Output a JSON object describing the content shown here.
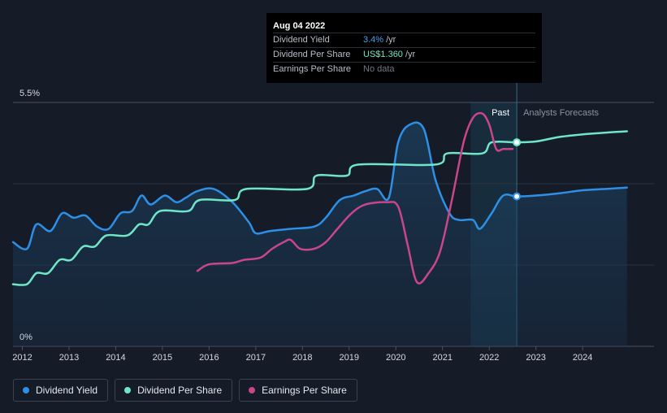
{
  "tooltip": {
    "date": "Aug 04 2022",
    "rows": [
      {
        "label": "Dividend Yield",
        "value": "3.4%",
        "unit": "/yr"
      },
      {
        "label": "Dividend Per Share",
        "value": "US$1.360",
        "unit": "/yr"
      },
      {
        "label": "Earnings Per Share",
        "value": "No data",
        "unit": ""
      }
    ]
  },
  "legend": [
    {
      "label": "Dividend Yield",
      "color": "#2d8fe6"
    },
    {
      "label": "Dividend Per Share",
      "color": "#6fe6c8"
    },
    {
      "label": "Earnings Per Share",
      "color": "#c9468a"
    }
  ],
  "chart_data": {
    "type": "line",
    "title": "",
    "y_axis_labels": [
      "5.5%",
      "0%"
    ],
    "ylim": [
      0,
      5.5
    ],
    "xlim": [
      2011.8,
      2024.95
    ],
    "x_ticks": [
      "2012",
      "2013",
      "2014",
      "2015",
      "2016",
      "2017",
      "2018",
      "2019",
      "2020",
      "2021",
      "2022",
      "2023",
      "2024"
    ],
    "regions": {
      "past_label": "Past",
      "forecast_label": "Analysts Forecasts",
      "highlight_start": 2021.6,
      "today": 2022.59
    },
    "series": [
      {
        "name": "Dividend Yield",
        "key": "dividend_yield",
        "color": "#2d8fe6",
        "area": true,
        "points": [
          [
            2011.8,
            2.35
          ],
          [
            2012.1,
            2.2
          ],
          [
            2012.3,
            2.75
          ],
          [
            2012.6,
            2.6
          ],
          [
            2012.85,
            3.0
          ],
          [
            2013.1,
            2.9
          ],
          [
            2013.35,
            2.95
          ],
          [
            2013.6,
            2.7
          ],
          [
            2013.85,
            2.65
          ],
          [
            2014.1,
            3.0
          ],
          [
            2014.35,
            3.05
          ],
          [
            2014.55,
            3.4
          ],
          [
            2014.75,
            3.2
          ],
          [
            2015.05,
            3.4
          ],
          [
            2015.3,
            3.25
          ],
          [
            2015.5,
            3.35
          ],
          [
            2015.75,
            3.5
          ],
          [
            2016.1,
            3.55
          ],
          [
            2016.5,
            3.25
          ],
          [
            2016.85,
            2.8
          ],
          [
            2017.0,
            2.55
          ],
          [
            2017.3,
            2.6
          ],
          [
            2017.75,
            2.65
          ],
          [
            2018.25,
            2.7
          ],
          [
            2018.5,
            2.9
          ],
          [
            2018.8,
            3.3
          ],
          [
            2019.1,
            3.4
          ],
          [
            2019.35,
            3.5
          ],
          [
            2019.6,
            3.55
          ],
          [
            2019.85,
            3.35
          ],
          [
            2020.05,
            4.6
          ],
          [
            2020.3,
            5.0
          ],
          [
            2020.6,
            4.9
          ],
          [
            2020.85,
            3.75
          ],
          [
            2021.15,
            3.0
          ],
          [
            2021.35,
            2.85
          ],
          [
            2021.65,
            2.85
          ],
          [
            2021.8,
            2.65
          ],
          [
            2022.05,
            3.0
          ],
          [
            2022.3,
            3.4
          ],
          [
            2022.59,
            3.38
          ],
          [
            2023.0,
            3.4
          ],
          [
            2023.5,
            3.45
          ],
          [
            2024.0,
            3.52
          ],
          [
            2024.5,
            3.55
          ],
          [
            2024.95,
            3.58
          ]
        ]
      },
      {
        "name": "Dividend Per Share",
        "key": "dividend_per_share",
        "color": "#6fe6c8",
        "area": false,
        "points": [
          [
            2011.8,
            1.4
          ],
          [
            2012.1,
            1.4
          ],
          [
            2012.3,
            1.65
          ],
          [
            2012.55,
            1.65
          ],
          [
            2012.8,
            1.95
          ],
          [
            2013.05,
            1.95
          ],
          [
            2013.3,
            2.25
          ],
          [
            2013.55,
            2.25
          ],
          [
            2013.8,
            2.5
          ],
          [
            2014.25,
            2.5
          ],
          [
            2014.5,
            2.75
          ],
          [
            2014.7,
            2.75
          ],
          [
            2014.95,
            3.05
          ],
          [
            2015.55,
            3.05
          ],
          [
            2015.8,
            3.3
          ],
          [
            2016.55,
            3.3
          ],
          [
            2016.8,
            3.55
          ],
          [
            2018.1,
            3.55
          ],
          [
            2018.3,
            3.85
          ],
          [
            2018.95,
            3.85
          ],
          [
            2019.2,
            4.1
          ],
          [
            2020.85,
            4.1
          ],
          [
            2021.1,
            4.35
          ],
          [
            2021.85,
            4.35
          ],
          [
            2022.05,
            4.6
          ],
          [
            2022.59,
            4.6
          ],
          [
            2023.0,
            4.62
          ],
          [
            2023.5,
            4.72
          ],
          [
            2024.0,
            4.78
          ],
          [
            2024.5,
            4.82
          ],
          [
            2024.95,
            4.85
          ]
        ]
      },
      {
        "name": "Earnings Per Share",
        "key": "earnings_per_share",
        "color": "#c9468a",
        "area": false,
        "points": [
          [
            2015.75,
            1.7
          ],
          [
            2016.0,
            1.85
          ],
          [
            2016.5,
            1.88
          ],
          [
            2016.75,
            1.95
          ],
          [
            2017.1,
            2.0
          ],
          [
            2017.35,
            2.2
          ],
          [
            2017.6,
            2.35
          ],
          [
            2017.75,
            2.4
          ],
          [
            2017.95,
            2.2
          ],
          [
            2018.25,
            2.2
          ],
          [
            2018.5,
            2.35
          ],
          [
            2018.75,
            2.65
          ],
          [
            2019.05,
            3.0
          ],
          [
            2019.35,
            3.2
          ],
          [
            2019.8,
            3.25
          ],
          [
            2020.05,
            3.15
          ],
          [
            2020.25,
            2.3
          ],
          [
            2020.45,
            1.45
          ],
          [
            2020.7,
            1.65
          ],
          [
            2020.95,
            2.15
          ],
          [
            2021.2,
            3.3
          ],
          [
            2021.45,
            4.6
          ],
          [
            2021.65,
            5.15
          ],
          [
            2021.85,
            5.25
          ],
          [
            2022.0,
            5.0
          ],
          [
            2022.15,
            4.45
          ],
          [
            2022.3,
            4.45
          ],
          [
            2022.5,
            4.45
          ]
        ]
      }
    ]
  }
}
